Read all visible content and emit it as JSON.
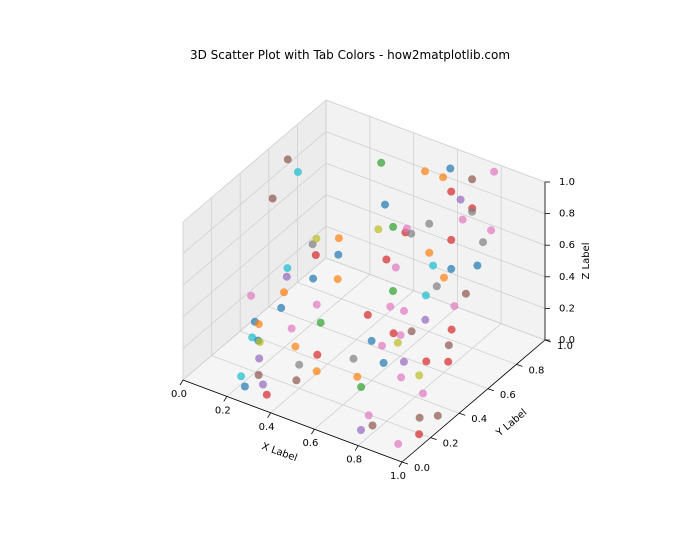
{
  "chart_data": {
    "type": "scatter",
    "title": "3D Scatter Plot with Tab Colors - how2matplotlib.com",
    "xlabel": "X Label",
    "ylabel": "Y Label",
    "zlabel": "Z Label",
    "xlim": [
      0,
      1
    ],
    "ylim": [
      0,
      1
    ],
    "zlim": [
      0,
      1
    ],
    "x_ticks": [
      "0.0",
      "0.2",
      "0.4",
      "0.6",
      "0.8",
      "1.0"
    ],
    "y_ticks": [
      "0.0",
      "0.2",
      "0.4",
      "0.6",
      "0.8",
      "1.0"
    ],
    "z_ticks": [
      "0.0",
      "0.2",
      "0.4",
      "0.6",
      "0.8",
      "1.0"
    ],
    "grid": true,
    "projection": "3d",
    "marker_alpha": 0.7,
    "palette": {
      "tab:blue": "#1f77b4",
      "tab:orange": "#ff7f0e",
      "tab:green": "#2ca02c",
      "tab:red": "#d62728",
      "tab:purple": "#9467bd",
      "tab:brown": "#8c564b",
      "tab:pink": "#e377c2",
      "tab:gray": "#7f7f7f",
      "tab:olive": "#bcbd22",
      "tab:cyan": "#17becf"
    },
    "points": [
      {
        "x": 0.05,
        "y": 0.55,
        "z": 0.75,
        "color": "tab:brown"
      },
      {
        "x": 0.1,
        "y": 0.58,
        "z": 1.0,
        "color": "tab:brown"
      },
      {
        "x": 0.12,
        "y": 0.62,
        "z": 0.9,
        "color": "tab:cyan"
      },
      {
        "x": 0.15,
        "y": 0.5,
        "z": 0.4,
        "color": "tab:cyan"
      },
      {
        "x": 0.05,
        "y": 0.4,
        "z": 0.25,
        "color": "tab:pink"
      },
      {
        "x": 0.1,
        "y": 0.35,
        "z": 0.15,
        "color": "tab:blue"
      },
      {
        "x": 0.12,
        "y": 0.3,
        "z": 0.1,
        "color": "tab:cyan"
      },
      {
        "x": 0.2,
        "y": 0.6,
        "z": 0.5,
        "color": "tab:gray"
      },
      {
        "x": 0.25,
        "y": 0.55,
        "z": 0.6,
        "color": "tab:olive"
      },
      {
        "x": 0.28,
        "y": 0.5,
        "z": 0.55,
        "color": "tab:red"
      },
      {
        "x": 0.18,
        "y": 0.45,
        "z": 0.4,
        "color": "tab:purple"
      },
      {
        "x": 0.2,
        "y": 0.4,
        "z": 0.35,
        "color": "tab:orange"
      },
      {
        "x": 0.22,
        "y": 0.35,
        "z": 0.3,
        "color": "tab:blue"
      },
      {
        "x": 0.15,
        "y": 0.3,
        "z": 0.2,
        "color": "tab:orange"
      },
      {
        "x": 0.18,
        "y": 0.25,
        "z": 0.15,
        "color": "tab:blue"
      },
      {
        "x": 0.22,
        "y": 0.2,
        "z": 0.2,
        "color": "tab:olive"
      },
      {
        "x": 0.25,
        "y": 0.15,
        "z": 0.15,
        "color": "tab:purple"
      },
      {
        "x": 0.28,
        "y": 0.1,
        "z": 0.1,
        "color": "tab:brown"
      },
      {
        "x": 0.2,
        "y": 0.1,
        "z": 0.05,
        "color": "tab:cyan"
      },
      {
        "x": 0.25,
        "y": 0.05,
        "z": 0.05,
        "color": "tab:blue"
      },
      {
        "x": 0.32,
        "y": 0.6,
        "z": 0.6,
        "color": "tab:orange"
      },
      {
        "x": 0.35,
        "y": 0.55,
        "z": 0.55,
        "color": "tab:blue"
      },
      {
        "x": 0.38,
        "y": 0.5,
        "z": 0.45,
        "color": "tab:orange"
      },
      {
        "x": 0.3,
        "y": 0.45,
        "z": 0.45,
        "color": "tab:blue"
      },
      {
        "x": 0.35,
        "y": 0.4,
        "z": 0.35,
        "color": "tab:pink"
      },
      {
        "x": 0.4,
        "y": 0.35,
        "z": 0.3,
        "color": "tab:green"
      },
      {
        "x": 0.3,
        "y": 0.3,
        "z": 0.25,
        "color": "tab:pink"
      },
      {
        "x": 0.35,
        "y": 0.25,
        "z": 0.2,
        "color": "tab:orange"
      },
      {
        "x": 0.4,
        "y": 0.2,
        "z": 0.15,
        "color": "tab:gray"
      },
      {
        "x": 0.45,
        "y": 0.25,
        "z": 0.2,
        "color": "tab:red"
      },
      {
        "x": 0.48,
        "y": 0.2,
        "z": 0.15,
        "color": "tab:orange"
      },
      {
        "x": 0.42,
        "y": 0.15,
        "z": 0.1,
        "color": "tab:brown"
      },
      {
        "x": 0.3,
        "y": 0.1,
        "z": 0.05,
        "color": "tab:purple"
      },
      {
        "x": 0.35,
        "y": 0.05,
        "z": 0.05,
        "color": "tab:red"
      },
      {
        "x": 0.5,
        "y": 0.6,
        "z": 0.75,
        "color": "tab:olive"
      },
      {
        "x": 0.55,
        "y": 0.58,
        "z": 0.6,
        "color": "tab:red"
      },
      {
        "x": 0.6,
        "y": 0.55,
        "z": 0.45,
        "color": "tab:green"
      },
      {
        "x": 0.58,
        "y": 0.6,
        "z": 0.55,
        "color": "tab:pink"
      },
      {
        "x": 0.62,
        "y": 0.5,
        "z": 0.4,
        "color": "tab:pink"
      },
      {
        "x": 0.65,
        "y": 0.55,
        "z": 0.35,
        "color": "tab:pink"
      },
      {
        "x": 0.55,
        "y": 0.45,
        "z": 0.35,
        "color": "tab:red"
      },
      {
        "x": 0.6,
        "y": 0.4,
        "z": 0.25,
        "color": "tab:blue"
      },
      {
        "x": 0.55,
        "y": 0.35,
        "z": 0.15,
        "color": "tab:gray"
      },
      {
        "x": 0.6,
        "y": 0.3,
        "z": 0.1,
        "color": "tab:orange"
      },
      {
        "x": 0.65,
        "y": 0.25,
        "z": 0.1,
        "color": "tab:green"
      },
      {
        "x": 0.7,
        "y": 0.4,
        "z": 0.35,
        "color": "tab:red"
      },
      {
        "x": 0.68,
        "y": 0.35,
        "z": 0.3,
        "color": "tab:pink"
      },
      {
        "x": 0.72,
        "y": 0.3,
        "z": 0.25,
        "color": "tab:blue"
      },
      {
        "x": 0.65,
        "y": 0.6,
        "z": 0.8,
        "color": "tab:gray"
      },
      {
        "x": 0.7,
        "y": 0.65,
        "z": 0.85,
        "color": "tab:gray"
      },
      {
        "x": 0.72,
        "y": 0.62,
        "z": 0.7,
        "color": "tab:orange"
      },
      {
        "x": 0.75,
        "y": 0.6,
        "z": 0.65,
        "color": "tab:cyan"
      },
      {
        "x": 0.78,
        "y": 0.58,
        "z": 0.55,
        "color": "tab:gray"
      },
      {
        "x": 0.75,
        "y": 0.55,
        "z": 0.5,
        "color": "tab:cyan"
      },
      {
        "x": 0.8,
        "y": 0.65,
        "z": 0.8,
        "color": "tab:red"
      },
      {
        "x": 0.82,
        "y": 0.7,
        "z": 0.9,
        "color": "tab:pink"
      },
      {
        "x": 0.85,
        "y": 0.72,
        "z": 0.95,
        "color": "tab:gray"
      },
      {
        "x": 0.82,
        "y": 0.62,
        "z": 0.65,
        "color": "tab:blue"
      },
      {
        "x": 0.8,
        "y": 0.6,
        "z": 0.6,
        "color": "tab:orange"
      },
      {
        "x": 0.78,
        "y": 0.5,
        "z": 0.4,
        "color": "tab:purple"
      },
      {
        "x": 0.75,
        "y": 0.45,
        "z": 0.35,
        "color": "tab:brown"
      },
      {
        "x": 0.7,
        "y": 0.45,
        "z": 0.3,
        "color": "tab:pink"
      },
      {
        "x": 0.72,
        "y": 0.4,
        "z": 0.3,
        "color": "tab:olive"
      },
      {
        "x": 0.78,
        "y": 0.35,
        "z": 0.25,
        "color": "tab:purple"
      },
      {
        "x": 0.85,
        "y": 0.4,
        "z": 0.25,
        "color": "tab:red"
      },
      {
        "x": 0.8,
        "y": 0.3,
        "z": 0.2,
        "color": "tab:pink"
      },
      {
        "x": 0.88,
        "y": 0.55,
        "z": 0.5,
        "color": "tab:pink"
      },
      {
        "x": 0.9,
        "y": 0.6,
        "z": 0.55,
        "color": "tab:brown"
      },
      {
        "x": 0.92,
        "y": 0.65,
        "z": 0.7,
        "color": "tab:blue"
      },
      {
        "x": 0.95,
        "y": 0.7,
        "z": 0.9,
        "color": "tab:pink"
      },
      {
        "x": 0.88,
        "y": 0.75,
        "z": 0.75,
        "color": "tab:gray"
      },
      {
        "x": 0.9,
        "y": 0.5,
        "z": 0.4,
        "color": "tab:red"
      },
      {
        "x": 0.92,
        "y": 0.45,
        "z": 0.35,
        "color": "tab:brown"
      },
      {
        "x": 0.95,
        "y": 0.4,
        "z": 0.3,
        "color": "tab:red"
      },
      {
        "x": 0.85,
        "y": 0.35,
        "z": 0.2,
        "color": "tab:olive"
      },
      {
        "x": 0.9,
        "y": 0.3,
        "z": 0.15,
        "color": "tab:pink"
      },
      {
        "x": 0.95,
        "y": 0.2,
        "z": 0.1,
        "color": "tab:brown"
      },
      {
        "x": 1.0,
        "y": 0.25,
        "z": 0.1,
        "color": "tab:brown"
      },
      {
        "x": 0.98,
        "y": 0.15,
        "z": 0.05,
        "color": "tab:red"
      },
      {
        "x": 0.95,
        "y": 0.05,
        "z": 0.05,
        "color": "tab:pink"
      },
      {
        "x": 0.75,
        "y": 0.15,
        "z": 0.05,
        "color": "tab:pink"
      },
      {
        "x": 0.8,
        "y": 0.1,
        "z": 0.05,
        "color": "tab:brown"
      },
      {
        "x": 0.78,
        "y": 0.05,
        "z": 0.05,
        "color": "tab:purple"
      },
      {
        "x": 0.55,
        "y": 0.85,
        "z": 0.95,
        "color": "tab:orange"
      },
      {
        "x": 0.6,
        "y": 0.9,
        "z": 0.9,
        "color": "tab:orange"
      },
      {
        "x": 0.62,
        "y": 0.92,
        "z": 0.95,
        "color": "tab:blue"
      },
      {
        "x": 0.65,
        "y": 0.88,
        "z": 0.85,
        "color": "tab:red"
      },
      {
        "x": 0.68,
        "y": 0.9,
        "z": 0.8,
        "color": "tab:purple"
      },
      {
        "x": 0.7,
        "y": 0.95,
        "z": 0.9,
        "color": "tab:brown"
      },
      {
        "x": 0.72,
        "y": 0.92,
        "z": 0.75,
        "color": "tab:red"
      },
      {
        "x": 0.8,
        "y": 0.95,
        "z": 1.0,
        "color": "tab:pink"
      },
      {
        "x": 0.35,
        "y": 0.85,
        "z": 0.9,
        "color": "tab:green"
      },
      {
        "x": 0.4,
        "y": 0.8,
        "z": 0.7,
        "color": "tab:blue"
      },
      {
        "x": 0.45,
        "y": 0.78,
        "z": 0.6,
        "color": "tab:green"
      },
      {
        "x": 0.48,
        "y": 0.82,
        "z": 0.55,
        "color": "tab:red"
      },
      {
        "x": 0.5,
        "y": 0.8,
        "z": 0.6,
        "color": "tab:pink"
      }
    ]
  }
}
